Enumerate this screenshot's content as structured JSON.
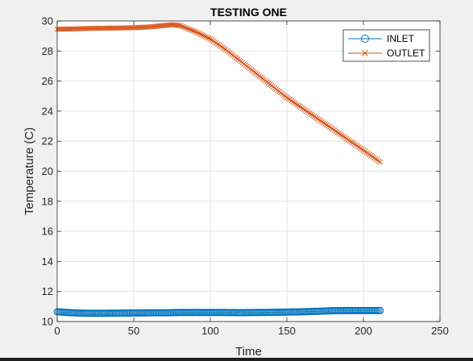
{
  "figure": {
    "background": "#f0f0f0",
    "axes_background": "#ffffff",
    "grid_color": "#e3e3e3",
    "axis_color": "#262626",
    "bottom_bar_color": "#1e1e1e"
  },
  "chart_data": {
    "type": "line",
    "title": "TESTING ONE",
    "xlabel": "Time",
    "ylabel": "Temperature (C)",
    "xlim": [
      0,
      250
    ],
    "ylim": [
      10,
      30
    ],
    "xticks": [
      0,
      50,
      100,
      150,
      200,
      250
    ],
    "yticks": [
      10,
      12,
      14,
      16,
      18,
      20,
      22,
      24,
      26,
      28,
      30
    ],
    "grid": true,
    "legend_position": "top-right",
    "series": [
      {
        "name": "INLET",
        "marker": "circle",
        "color": "#0072bd",
        "x": [
          0,
          10,
          20,
          30,
          40,
          50,
          60,
          70,
          80,
          90,
          100,
          110,
          120,
          130,
          140,
          150,
          160,
          170,
          180,
          190,
          200,
          211
        ],
        "y": [
          10.65,
          10.58,
          10.55,
          10.55,
          10.56,
          10.57,
          10.58,
          10.58,
          10.6,
          10.6,
          10.6,
          10.6,
          10.59,
          10.6,
          10.61,
          10.63,
          10.65,
          10.68,
          10.72,
          10.73,
          10.73,
          10.73
        ]
      },
      {
        "name": "OUTLET",
        "marker": "x",
        "color": "#d95319",
        "x": [
          0,
          10,
          20,
          30,
          40,
          50,
          60,
          70,
          75,
          80,
          85,
          90,
          100,
          110,
          120,
          130,
          140,
          150,
          160,
          170,
          180,
          190,
          200,
          211
        ],
        "y": [
          29.45,
          29.47,
          29.5,
          29.52,
          29.53,
          29.55,
          29.6,
          29.7,
          29.75,
          29.7,
          29.5,
          29.3,
          28.8,
          28.1,
          27.3,
          26.5,
          25.7,
          24.9,
          24.2,
          23.5,
          22.8,
          22.1,
          21.4,
          20.6
        ]
      }
    ]
  }
}
